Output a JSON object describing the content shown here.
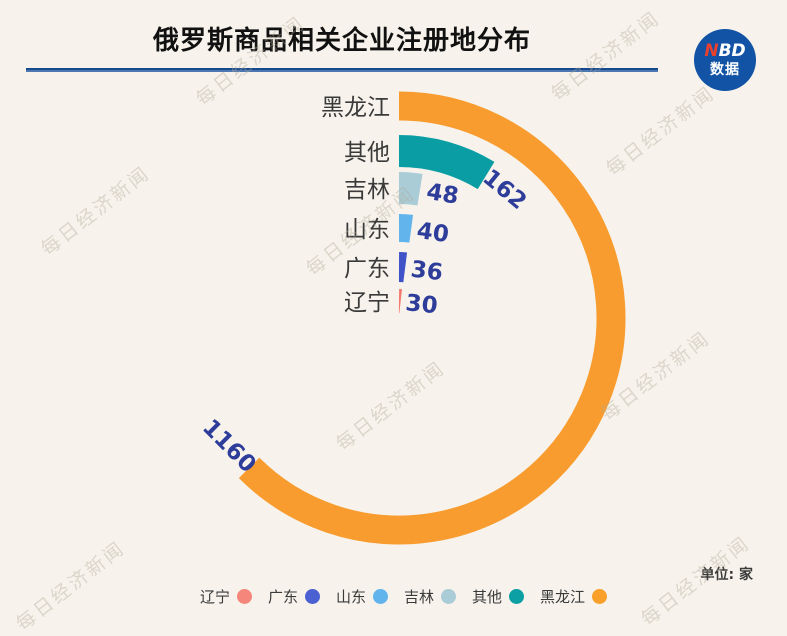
{
  "page": {
    "background": "#F7F3EC"
  },
  "header": {
    "title": "俄罗斯商品相关企业注册地分布",
    "underline_color": "#17498E"
  },
  "logo": {
    "n": "N",
    "bd": "BD",
    "line2": "数据",
    "bg": "#1253A5",
    "n_color": "#E8402F"
  },
  "watermark": {
    "text": "每日经济新闻"
  },
  "unit_note": "单位: 家",
  "chart_data": {
    "type": "radial-bar",
    "title": "俄罗斯商品相关企业注册地分布",
    "unit": "家",
    "categories": [
      "黑龙江",
      "其他",
      "吉林",
      "山东",
      "广东",
      "辽宁"
    ],
    "values": [
      1160,
      162,
      48,
      40,
      36,
      30
    ],
    "rings_outer_to_inner": [
      {
        "id": "heilongjiang",
        "label": "黑龙江",
        "value": 1160,
        "color": "#F89C2F"
      },
      {
        "id": "qita",
        "label": "其他",
        "value": 162,
        "color": "#0A9EA4"
      },
      {
        "id": "jilin",
        "label": "吉林",
        "value": 48,
        "color": "#A9CCD7"
      },
      {
        "id": "shandong",
        "label": "山东",
        "value": 40,
        "color": "#62B4EC"
      },
      {
        "id": "guangdong",
        "label": "广东",
        "value": 36,
        "color": "#4052C8"
      },
      {
        "id": "liaoning",
        "label": "辽宁",
        "value": 30,
        "color": "#F4796E"
      }
    ],
    "angle_scale": {
      "start": "top",
      "direction": "clockwise",
      "value_at_full_sweep": 1160,
      "full_sweep_deg": 225
    },
    "value_label_color": "#2E3D9A",
    "legend_position": "bottom",
    "legend_left_to_right": [
      {
        "id": "liaoning",
        "label": "辽宁",
        "color": "#F5867C"
      },
      {
        "id": "guangdong",
        "label": "广东",
        "color": "#4B61D1"
      },
      {
        "id": "shandong",
        "label": "山东",
        "color": "#62B4EC"
      },
      {
        "id": "jilin",
        "label": "吉林",
        "color": "#A9CCD7"
      },
      {
        "id": "qita",
        "label": "其他",
        "color": "#0C9FA4"
      },
      {
        "id": "heilongjiang",
        "label": "黑龙江",
        "color": "#F9A02B"
      }
    ]
  }
}
